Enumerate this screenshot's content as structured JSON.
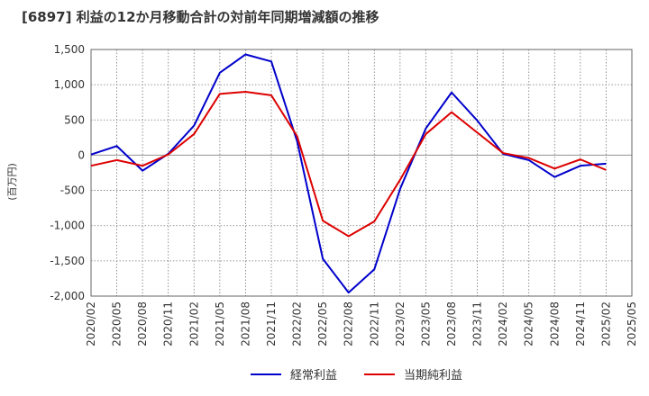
{
  "chart_data": {
    "type": "line",
    "title": "[6897]  利益の12か月移動合計の対前年同期増減額の推移",
    "ylabel": "(百万円)",
    "xlabel": "",
    "ylim": [
      -2000,
      1500
    ],
    "yticks": [
      1500,
      1000,
      500,
      0,
      -500,
      -1000,
      -1500,
      -2000
    ],
    "ytick_labels": [
      "1,500",
      "1,000",
      "500",
      "0",
      "-500",
      "-1,000",
      "-1,500",
      "-2,000"
    ],
    "categories": [
      "2020/02",
      "2020/05",
      "2020/08",
      "2020/11",
      "2021/02",
      "2021/05",
      "2021/08",
      "2021/11",
      "2022/02",
      "2022/05",
      "2022/08",
      "2022/11",
      "2023/02",
      "2023/05",
      "2023/08",
      "2023/11",
      "2024/02",
      "2024/05",
      "2024/08",
      "2024/11",
      "2025/02",
      "2025/05"
    ],
    "grid": true,
    "legend_position": "bottom",
    "series": [
      {
        "name": "経常利益",
        "color": "#0000cc",
        "values": [
          10,
          130,
          -220,
          20,
          420,
          1170,
          1430,
          1330,
          200,
          -1470,
          -1950,
          -1620,
          -480,
          380,
          890,
          490,
          20,
          -70,
          -310,
          -150,
          -120,
          null
        ]
      },
      {
        "name": "当期純利益",
        "color": "#dd0000",
        "values": [
          -150,
          -70,
          -150,
          10,
          300,
          870,
          900,
          850,
          270,
          -930,
          -1150,
          -940,
          -350,
          300,
          610,
          320,
          30,
          -40,
          -190,
          -60,
          -210,
          null
        ]
      }
    ]
  }
}
